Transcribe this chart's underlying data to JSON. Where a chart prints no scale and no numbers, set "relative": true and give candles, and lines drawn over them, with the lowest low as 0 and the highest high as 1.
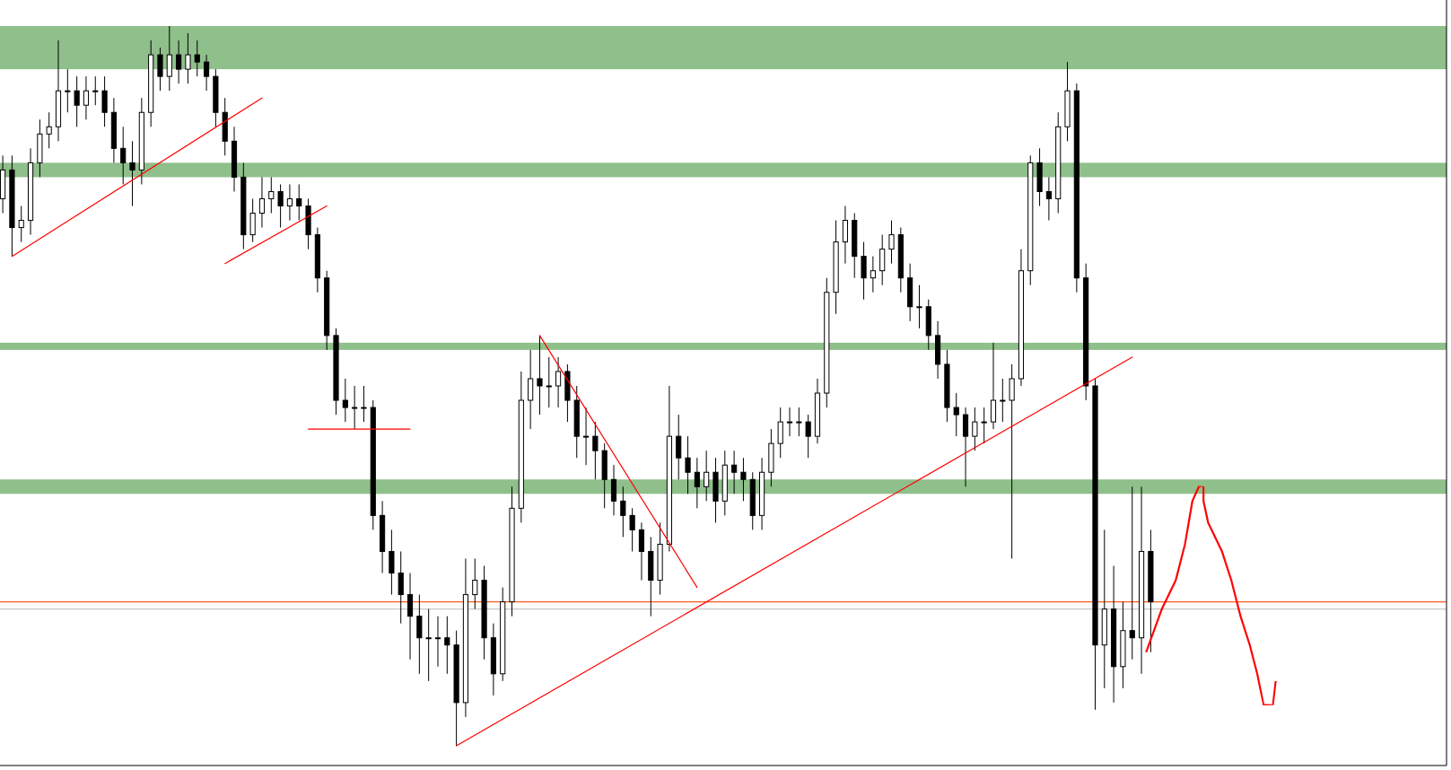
{
  "chart_data": {
    "type": "candlestick",
    "relative": true,
    "categories": [
      null,
      null,
      null,
      null,
      null,
      null,
      null,
      null,
      null,
      null,
      null,
      null,
      null,
      null,
      null,
      null,
      null,
      null,
      null,
      null,
      null,
      null,
      null,
      null,
      null,
      null,
      null,
      null,
      null,
      null,
      null,
      null,
      null,
      null,
      null,
      null,
      null,
      null,
      null,
      null,
      null,
      null,
      null,
      null,
      null,
      null,
      null,
      null,
      null,
      null,
      null,
      null,
      null,
      null,
      null,
      null,
      null,
      null,
      null,
      null,
      null,
      null,
      null,
      null,
      null,
      null,
      null,
      null,
      null,
      null,
      null,
      null,
      null,
      null,
      null,
      null,
      null,
      null,
      null,
      null,
      null,
      null,
      null,
      null,
      null,
      null,
      null,
      null,
      null,
      null,
      null,
      null,
      null,
      null,
      null,
      null,
      null,
      null,
      null,
      null,
      null,
      null,
      null,
      null,
      null,
      null,
      null,
      null,
      null,
      null,
      null,
      null,
      null,
      null,
      null,
      null,
      null,
      null,
      null,
      null,
      null,
      null,
      null,
      null,
      null
    ],
    "ohlc": [
      [
        0.76,
        0.82,
        0.74,
        0.8
      ],
      [
        0.8,
        0.82,
        0.68,
        0.72
      ],
      [
        0.72,
        0.75,
        0.7,
        0.73
      ],
      [
        0.73,
        0.83,
        0.71,
        0.81
      ],
      [
        0.81,
        0.87,
        0.79,
        0.85
      ],
      [
        0.85,
        0.88,
        0.83,
        0.86
      ],
      [
        0.86,
        0.98,
        0.84,
        0.91
      ],
      [
        0.91,
        0.94,
        0.88,
        0.91
      ],
      [
        0.91,
        0.93,
        0.86,
        0.89
      ],
      [
        0.89,
        0.93,
        0.87,
        0.91
      ],
      [
        0.91,
        0.93,
        0.89,
        0.91
      ],
      [
        0.91,
        0.93,
        0.86,
        0.88
      ],
      [
        0.88,
        0.9,
        0.81,
        0.83
      ],
      [
        0.83,
        0.86,
        0.78,
        0.81
      ],
      [
        0.81,
        0.84,
        0.75,
        0.8
      ],
      [
        0.8,
        0.9,
        0.78,
        0.88
      ],
      [
        0.88,
        0.98,
        0.86,
        0.96
      ],
      [
        0.96,
        0.97,
        0.91,
        0.93
      ],
      [
        0.93,
        1.0,
        0.91,
        0.96
      ],
      [
        0.96,
        0.98,
        0.92,
        0.94
      ],
      [
        0.94,
        0.99,
        0.92,
        0.96
      ],
      [
        0.96,
        0.98,
        0.93,
        0.95
      ],
      [
        0.95,
        0.96,
        0.91,
        0.93
      ],
      [
        0.93,
        0.94,
        0.86,
        0.88
      ],
      [
        0.88,
        0.9,
        0.82,
        0.84
      ],
      [
        0.84,
        0.86,
        0.77,
        0.79
      ],
      [
        0.79,
        0.81,
        0.69,
        0.71
      ],
      [
        0.71,
        0.76,
        0.7,
        0.74
      ],
      [
        0.74,
        0.79,
        0.72,
        0.76
      ],
      [
        0.76,
        0.79,
        0.74,
        0.77
      ],
      [
        0.77,
        0.78,
        0.72,
        0.75
      ],
      [
        0.75,
        0.78,
        0.73,
        0.76
      ],
      [
        0.76,
        0.78,
        0.73,
        0.75
      ],
      [
        0.75,
        0.76,
        0.69,
        0.71
      ],
      [
        0.71,
        0.72,
        0.63,
        0.65
      ],
      [
        0.65,
        0.66,
        0.55,
        0.57
      ],
      [
        0.57,
        0.58,
        0.46,
        0.48
      ],
      [
        0.48,
        0.51,
        0.45,
        0.47
      ],
      [
        0.47,
        0.5,
        0.44,
        0.47
      ],
      [
        0.47,
        0.5,
        0.45,
        0.47
      ],
      [
        0.47,
        0.48,
        0.3,
        0.32
      ],
      [
        0.32,
        0.34,
        0.24,
        0.27
      ],
      [
        0.27,
        0.3,
        0.21,
        0.24
      ],
      [
        0.24,
        0.27,
        0.17,
        0.21
      ],
      [
        0.21,
        0.24,
        0.12,
        0.18
      ],
      [
        0.18,
        0.21,
        0.1,
        0.15
      ],
      [
        0.15,
        0.19,
        0.09,
        0.15
      ],
      [
        0.15,
        0.18,
        0.11,
        0.15
      ],
      [
        0.15,
        0.18,
        0.1,
        0.14
      ],
      [
        0.14,
        0.16,
        0.0,
        0.06
      ],
      [
        0.06,
        0.26,
        0.04,
        0.21
      ],
      [
        0.21,
        0.26,
        0.19,
        0.23
      ],
      [
        0.23,
        0.25,
        0.12,
        0.15
      ],
      [
        0.15,
        0.17,
        0.07,
        0.1
      ],
      [
        0.1,
        0.22,
        0.09,
        0.2
      ],
      [
        0.2,
        0.36,
        0.18,
        0.33
      ],
      [
        0.33,
        0.52,
        0.31,
        0.48
      ],
      [
        0.48,
        0.55,
        0.44,
        0.51
      ],
      [
        0.51,
        0.57,
        0.46,
        0.5
      ],
      [
        0.5,
        0.54,
        0.47,
        0.5
      ],
      [
        0.5,
        0.54,
        0.47,
        0.52
      ],
      [
        0.52,
        0.53,
        0.45,
        0.48
      ],
      [
        0.48,
        0.5,
        0.4,
        0.43
      ],
      [
        0.43,
        0.47,
        0.39,
        0.43
      ],
      [
        0.43,
        0.45,
        0.37,
        0.41
      ],
      [
        0.41,
        0.42,
        0.33,
        0.37
      ],
      [
        0.37,
        0.39,
        0.32,
        0.34
      ],
      [
        0.34,
        0.36,
        0.29,
        0.32
      ],
      [
        0.32,
        0.33,
        0.27,
        0.3
      ],
      [
        0.3,
        0.31,
        0.23,
        0.27
      ],
      [
        0.27,
        0.29,
        0.18,
        0.23
      ],
      [
        0.23,
        0.31,
        0.21,
        0.28
      ],
      [
        0.28,
        0.5,
        0.27,
        0.43
      ],
      [
        0.43,
        0.46,
        0.37,
        0.4
      ],
      [
        0.4,
        0.43,
        0.35,
        0.38
      ],
      [
        0.38,
        0.4,
        0.33,
        0.36
      ],
      [
        0.36,
        0.41,
        0.34,
        0.38
      ],
      [
        0.38,
        0.4,
        0.31,
        0.34
      ],
      [
        0.34,
        0.41,
        0.32,
        0.39
      ],
      [
        0.39,
        0.41,
        0.35,
        0.38
      ],
      [
        0.38,
        0.4,
        0.34,
        0.37
      ],
      [
        0.37,
        0.38,
        0.3,
        0.32
      ],
      [
        0.32,
        0.4,
        0.3,
        0.38
      ],
      [
        0.38,
        0.44,
        0.36,
        0.42
      ],
      [
        0.42,
        0.47,
        0.4,
        0.45
      ],
      [
        0.45,
        0.47,
        0.43,
        0.45
      ],
      [
        0.45,
        0.47,
        0.43,
        0.45
      ],
      [
        0.45,
        0.46,
        0.4,
        0.43
      ],
      [
        0.43,
        0.51,
        0.42,
        0.49
      ],
      [
        0.49,
        0.65,
        0.47,
        0.63
      ],
      [
        0.63,
        0.73,
        0.6,
        0.7
      ],
      [
        0.7,
        0.75,
        0.67,
        0.73
      ],
      [
        0.73,
        0.74,
        0.65,
        0.68
      ],
      [
        0.68,
        0.7,
        0.62,
        0.65
      ],
      [
        0.65,
        0.68,
        0.63,
        0.66
      ],
      [
        0.66,
        0.71,
        0.64,
        0.69
      ],
      [
        0.69,
        0.73,
        0.67,
        0.71
      ],
      [
        0.71,
        0.72,
        0.63,
        0.65
      ],
      [
        0.65,
        0.67,
        0.59,
        0.61
      ],
      [
        0.61,
        0.64,
        0.58,
        0.61
      ],
      [
        0.61,
        0.62,
        0.55,
        0.57
      ],
      [
        0.57,
        0.59,
        0.51,
        0.53
      ],
      [
        0.53,
        0.55,
        0.45,
        0.47
      ],
      [
        0.47,
        0.49,
        0.43,
        0.46
      ],
      [
        0.46,
        0.47,
        0.36,
        0.43
      ],
      [
        0.43,
        0.47,
        0.41,
        0.45
      ],
      [
        0.45,
        0.47,
        0.42,
        0.45
      ],
      [
        0.45,
        0.56,
        0.44,
        0.48
      ],
      [
        0.48,
        0.51,
        0.45,
        0.48
      ],
      [
        0.48,
        0.53,
        0.26,
        0.51
      ],
      [
        0.51,
        0.69,
        0.5,
        0.66
      ],
      [
        0.66,
        0.82,
        0.64,
        0.81
      ],
      [
        0.81,
        0.83,
        0.75,
        0.77
      ],
      [
        0.77,
        0.79,
        0.73,
        0.76
      ],
      [
        0.76,
        0.88,
        0.74,
        0.86
      ],
      [
        0.86,
        0.95,
        0.84,
        0.91
      ],
      [
        0.91,
        0.92,
        0.63,
        0.65
      ],
      [
        0.65,
        0.67,
        0.48,
        0.5
      ],
      [
        0.5,
        0.51,
        0.05,
        0.14
      ],
      [
        0.14,
        0.3,
        0.08,
        0.19
      ],
      [
        0.19,
        0.25,
        0.06,
        0.11
      ],
      [
        0.11,
        0.2,
        0.08,
        0.16
      ],
      [
        0.16,
        0.36,
        0.12,
        0.15
      ],
      [
        0.15,
        0.36,
        0.1,
        0.27
      ],
      [
        0.27,
        0.3,
        0.13,
        0.2
      ]
    ],
    "series": [
      {
        "type": "line",
        "color": "#ff0000",
        "values": [
          null,
          0.68,
          null,
          null,
          null,
          null,
          null,
          null,
          null,
          null,
          null,
          null,
          null,
          null,
          null,
          null,
          null,
          null,
          null,
          null,
          null,
          null,
          null,
          null,
          null,
          null,
          null,
          null,
          0.9,
          null,
          null,
          null,
          null,
          null,
          null,
          null,
          null,
          null,
          null,
          null,
          null,
          null,
          null,
          null,
          null,
          null,
          null,
          null,
          null,
          null,
          null,
          null,
          null,
          null,
          null,
          null,
          null,
          null,
          null,
          null,
          null,
          null,
          null,
          null,
          null,
          null,
          null,
          null,
          null,
          null,
          null,
          null,
          null,
          null,
          null,
          null,
          null,
          null,
          null,
          null,
          null,
          null,
          null,
          null,
          null,
          null,
          null,
          null,
          null,
          null,
          null,
          null,
          null,
          null,
          null,
          null,
          null,
          null,
          null,
          null,
          null,
          null,
          null,
          null,
          null,
          null,
          null,
          null,
          null,
          null,
          null,
          null,
          null,
          null,
          null,
          null,
          null,
          null,
          null,
          null,
          null,
          null,
          null,
          null,
          null
        ]
      },
      {
        "type": "line",
        "color": "#ff0000",
        "values": [
          null,
          null,
          null,
          null,
          null,
          null,
          null,
          null,
          null,
          null,
          null,
          null,
          null,
          null,
          null,
          null,
          null,
          null,
          null,
          null,
          null,
          null,
          null,
          null,
          0.67,
          null,
          null,
          null,
          null,
          null,
          null,
          null,
          null,
          null,
          null,
          0.75,
          null,
          null,
          null,
          null,
          null,
          null,
          null,
          null,
          null,
          null,
          null,
          null,
          null,
          null,
          null,
          null,
          null,
          null,
          null,
          null,
          null,
          null,
          null,
          null,
          null,
          null,
          null,
          null,
          null,
          null,
          null,
          null,
          null,
          null,
          null,
          null,
          null,
          null,
          null,
          null,
          null,
          null,
          null,
          null,
          null,
          null,
          null,
          null,
          null,
          null,
          null,
          null,
          null,
          null,
          null,
          null,
          null,
          null,
          null,
          null,
          null,
          null,
          null,
          null,
          null,
          null,
          null,
          null,
          null,
          null,
          null,
          null,
          null,
          null,
          null,
          null,
          null,
          null,
          null,
          null,
          null,
          null,
          null,
          null,
          null,
          null,
          null,
          null,
          null
        ]
      },
      {
        "type": "line",
        "color": "#ff0000",
        "values": [
          null,
          null,
          null,
          null,
          null,
          null,
          null,
          null,
          null,
          null,
          null,
          null,
          null,
          null,
          null,
          null,
          null,
          null,
          null,
          null,
          null,
          null,
          null,
          null,
          null,
          null,
          null,
          null,
          null,
          null,
          null,
          null,
          null,
          0.44,
          null,
          null,
          null,
          null,
          null,
          null,
          null,
          null,
          null,
          null,
          0.44,
          null,
          null,
          null,
          null,
          null,
          null,
          null,
          null,
          null,
          null,
          null,
          null,
          null,
          null,
          null,
          null,
          null,
          null,
          null,
          null,
          null,
          null,
          null,
          null,
          null,
          null,
          null,
          null,
          null,
          null,
          null,
          null,
          null,
          null,
          null,
          null,
          null,
          null,
          null,
          null,
          null,
          null,
          null,
          null,
          null,
          null,
          null,
          null,
          null,
          null,
          null,
          null,
          null,
          null,
          null,
          null,
          null,
          null,
          null,
          null,
          null,
          null,
          null,
          null,
          null,
          null,
          null,
          null,
          null,
          null,
          null,
          null,
          null,
          null,
          null,
          null,
          null,
          null,
          null,
          null
        ]
      },
      {
        "type": "line",
        "color": "#ff0000",
        "values": [
          null,
          null,
          null,
          null,
          null,
          null,
          null,
          null,
          null,
          null,
          null,
          null,
          null,
          null,
          null,
          null,
          null,
          null,
          null,
          null,
          null,
          null,
          null,
          null,
          null,
          null,
          null,
          null,
          null,
          null,
          null,
          null,
          null,
          null,
          null,
          null,
          null,
          null,
          null,
          null,
          null,
          null,
          null,
          null,
          null,
          null,
          null,
          null,
          null,
          null,
          null,
          null,
          null,
          null,
          null,
          null,
          null,
          null,
          0.57,
          null,
          null,
          null,
          null,
          null,
          null,
          null,
          null,
          null,
          null,
          null,
          null,
          null,
          null,
          null,
          null,
          0.22,
          null,
          null,
          null,
          null,
          null,
          null,
          null,
          null,
          null,
          null,
          null,
          null,
          null,
          null,
          null,
          null,
          null,
          null,
          null,
          null,
          null,
          null,
          null,
          null,
          null,
          null,
          null,
          null,
          null,
          null,
          null,
          null,
          null,
          null,
          null,
          null,
          null,
          null,
          null,
          null,
          null,
          null,
          null,
          null,
          null,
          null,
          null,
          null,
          null
        ]
      },
      {
        "type": "line",
        "color": "#ff0000",
        "values": [
          null,
          null,
          null,
          null,
          null,
          null,
          null,
          null,
          null,
          null,
          null,
          null,
          null,
          null,
          null,
          null,
          null,
          null,
          null,
          null,
          null,
          null,
          null,
          null,
          null,
          null,
          null,
          null,
          null,
          null,
          null,
          null,
          null,
          null,
          null,
          null,
          null,
          null,
          null,
          null,
          null,
          null,
          null,
          null,
          null,
          null,
          null,
          null,
          null,
          0.0,
          null,
          null,
          null,
          null,
          null,
          null,
          null,
          null,
          null,
          null,
          null,
          null,
          null,
          null,
          null,
          null,
          null,
          null,
          null,
          null,
          null,
          null,
          null,
          null,
          null,
          null,
          null,
          null,
          null,
          null,
          null,
          null,
          null,
          null,
          null,
          null,
          null,
          null,
          null,
          null,
          null,
          null,
          null,
          null,
          null,
          null,
          null,
          null,
          null,
          null,
          null,
          null,
          null,
          null,
          null,
          null,
          null,
          null,
          null,
          null,
          null,
          null,
          null,
          null,
          null,
          null,
          null,
          null,
          null,
          null,
          null,
          null,
          0.54,
          null,
          null
        ]
      }
    ],
    "bands": [
      {
        "axis": "y",
        "from": 0.94,
        "to": 1.0,
        "color": "#8fbf8a"
      },
      {
        "axis": "y",
        "from": 0.79,
        "to": 0.81,
        "color": "#8fbf8a"
      },
      {
        "axis": "y",
        "from": 0.55,
        "to": 0.56,
        "color": "#8fbf8a"
      },
      {
        "axis": "y",
        "from": 0.35,
        "to": 0.37,
        "color": "#8fbf8a"
      }
    ],
    "ref_lines": [
      {
        "axis": "y",
        "value": 0.2,
        "color": "#ff5a1f",
        "line_style": "solid"
      },
      {
        "axis": "y",
        "value": 0.19,
        "color": "#c8c8c8",
        "line_style": "solid"
      }
    ]
  }
}
